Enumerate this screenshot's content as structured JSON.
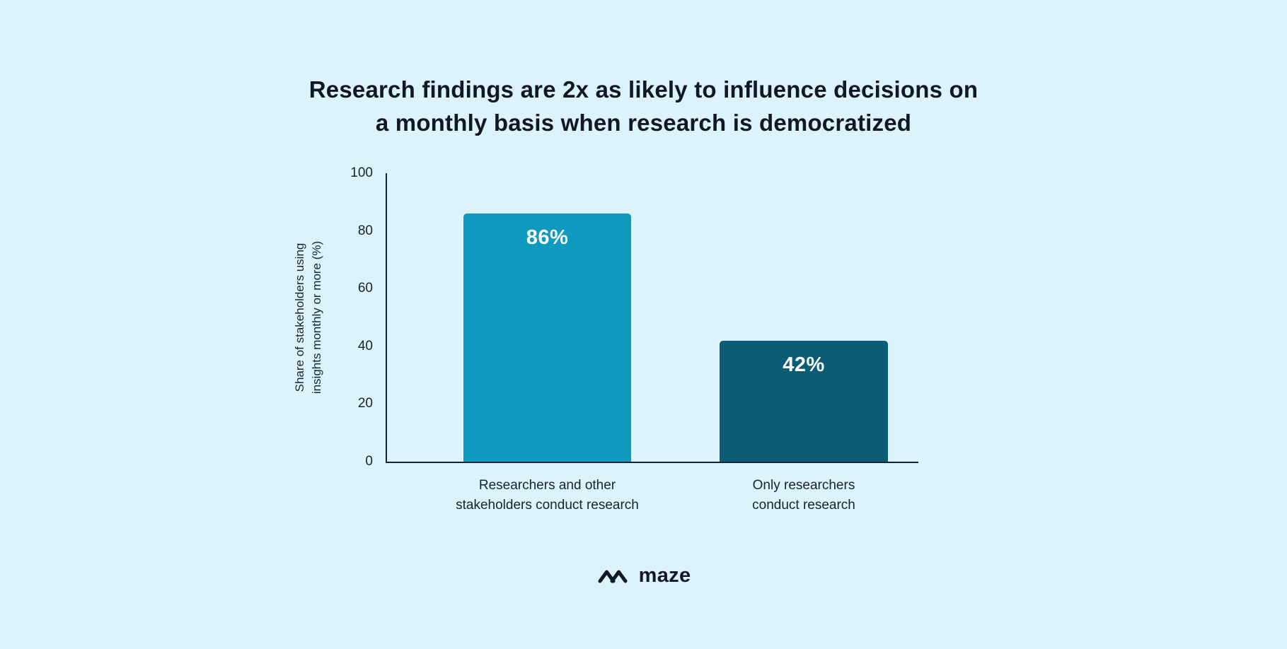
{
  "page": {
    "background_color": "#dcf3fb",
    "text_color": "#101823",
    "axis_color": "#16242f"
  },
  "chart_data": {
    "type": "bar",
    "title": "Research findings are 2x as likely to influence decisions on\na monthly basis when research is democratized",
    "categories": [
      "Researchers and other\nstakeholders conduct research",
      "Only researchers\nconduct research"
    ],
    "values": [
      86,
      42
    ],
    "value_labels": [
      "86%",
      "42%"
    ],
    "bar_colors": [
      "#0e9abf",
      "#0d5c75"
    ],
    "value_label_color": "#ffffff",
    "xlabel": "",
    "ylabel": "Share of stakeholders using\ninsights monthly or more (%)",
    "ylim": [
      0,
      100
    ],
    "yticks": [
      0,
      20,
      40,
      60,
      80,
      100
    ],
    "grid": false,
    "legend": "none"
  },
  "footer": {
    "logo_text": "maze"
  }
}
